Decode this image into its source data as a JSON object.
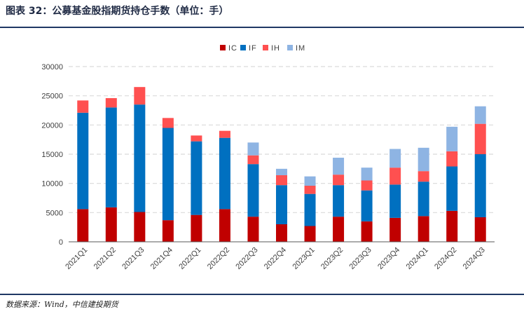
{
  "title": "图表 32：公募基金股指期货持仓手数（单位：手）",
  "source": "数据来源：Wind，中信建投期货",
  "colors": {
    "IC": "#c00000",
    "IF": "#0070c0",
    "IH": "#ff5050",
    "IM": "#8eb4e3",
    "grid": "#d9d9d9",
    "axis": "#595959",
    "rule": "#1f3864"
  },
  "chart_data": {
    "type": "bar",
    "stacked": true,
    "title": "",
    "xlabel": "",
    "ylabel": "",
    "ylim": [
      0,
      30000
    ],
    "yticks": [
      0,
      5000,
      10000,
      15000,
      20000,
      25000,
      30000
    ],
    "grid": true,
    "legend_position": "top",
    "categories": [
      "2021Q1",
      "2021Q2",
      "2021Q3",
      "2021Q4",
      "2022Q1",
      "2022Q2",
      "2022Q3",
      "2022Q4",
      "2023Q1",
      "2023Q2",
      "2023Q3",
      "2023Q4",
      "2024Q1",
      "2024Q2",
      "2024Q3"
    ],
    "series": [
      {
        "name": "IC",
        "values": [
          5600,
          5900,
          5100,
          3700,
          4600,
          5600,
          4300,
          3000,
          2700,
          4300,
          3500,
          4100,
          4400,
          5300,
          4200
        ]
      },
      {
        "name": "IF",
        "values": [
          16500,
          17100,
          18400,
          15800,
          12600,
          12200,
          9000,
          6700,
          5500,
          5400,
          5300,
          5700,
          5900,
          7600,
          10800
        ]
      },
      {
        "name": "IH",
        "values": [
          2100,
          1600,
          3000,
          1700,
          1000,
          1200,
          1500,
          1700,
          1400,
          1800,
          1700,
          2900,
          1800,
          2600,
          5200
        ]
      },
      {
        "name": "IM",
        "values": [
          0,
          0,
          0,
          0,
          0,
          0,
          2200,
          1100,
          1600,
          2900,
          2200,
          3200,
          4000,
          4200,
          3000
        ]
      }
    ]
  }
}
